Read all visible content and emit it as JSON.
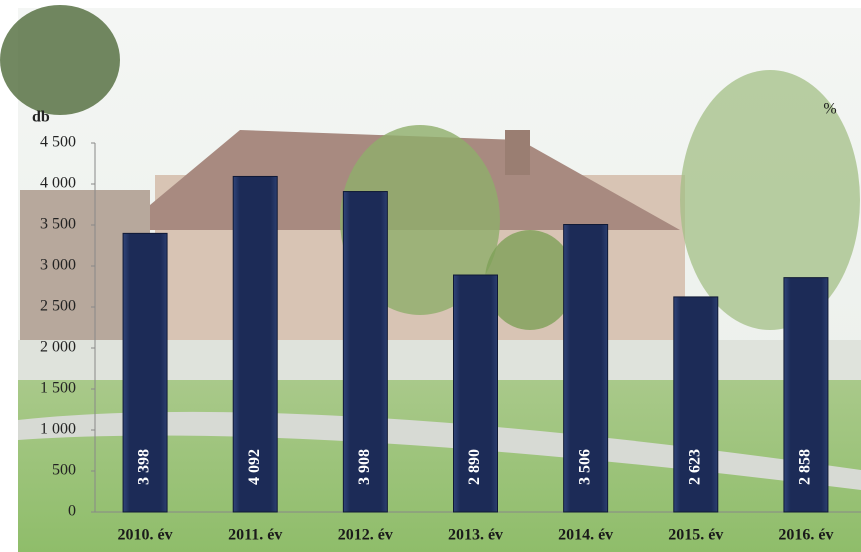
{
  "chart_data": {
    "type": "bar",
    "y_label": "db",
    "y2_label": "%",
    "categories": [
      "2010. év",
      "2011. év",
      "2012. év",
      "2013. év",
      "2014. év",
      "2015. év",
      "2016. év"
    ],
    "values": [
      3398,
      4092,
      3908,
      2890,
      3506,
      2623,
      2858
    ],
    "value_labels": [
      "3 398",
      "4 092",
      "3 908",
      "2 890",
      "3 506",
      "2 623",
      "2 858"
    ],
    "color": "#1c2b57",
    "ylim": [
      0,
      4500
    ],
    "yticks": [
      0,
      500,
      {
        "value": 1000,
        "label": "1 000"
      },
      {
        "value": 1500,
        "label": "1 500"
      },
      {
        "value": 2000,
        "label": "2 000"
      },
      {
        "value": 2500,
        "label": "2 500"
      },
      {
        "value": 3000,
        "label": "3 000"
      },
      {
        "value": 3500,
        "label": "3 500"
      },
      {
        "value": 4000,
        "label": "4 000"
      },
      {
        "value": 4500,
        "label": "4 500"
      }
    ]
  }
}
